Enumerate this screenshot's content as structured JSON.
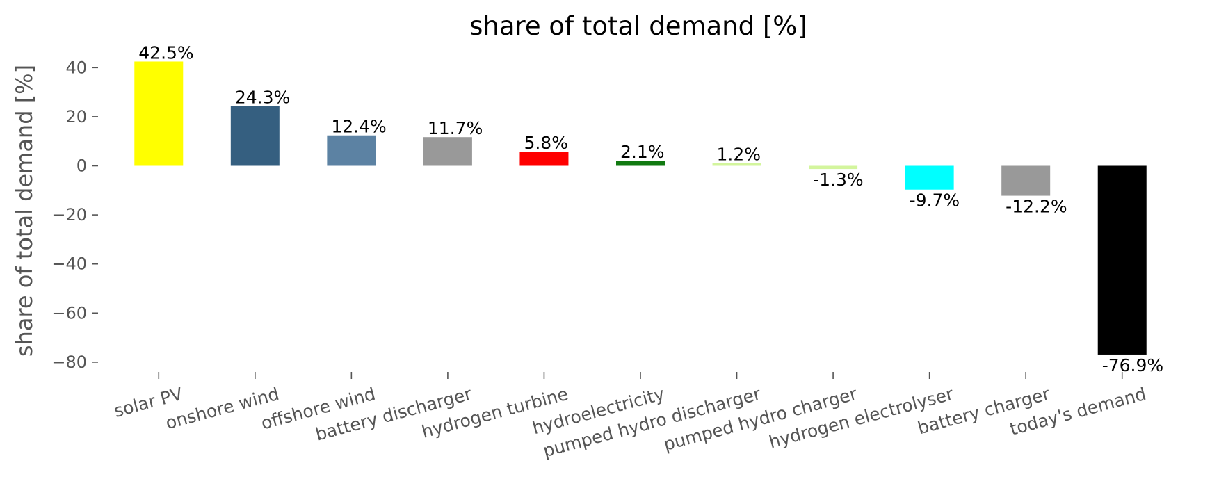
{
  "chart_data": {
    "type": "bar",
    "title": "share of total demand [%]",
    "xlabel": "",
    "ylabel": "share of total demand [%]",
    "ylim": [
      -82,
      45
    ],
    "yticks": [
      40,
      20,
      0,
      -20,
      -40,
      -60,
      -80
    ],
    "ytick_labels": [
      "40",
      "20",
      "0",
      "−20",
      "−40",
      "−60",
      "−80"
    ],
    "grid": false,
    "categories": [
      "solar PV",
      "onshore wind",
      "offshore wind",
      "battery discharger",
      "hydrogen turbine",
      "hydroelectricity",
      "pumped hydro discharger",
      "pumped hydro charger",
      "hydrogen electrolyser",
      "battery charger",
      "today's demand"
    ],
    "values": [
      42.5,
      24.3,
      12.4,
      11.7,
      5.8,
      2.1,
      1.2,
      -1.3,
      -9.7,
      -12.2,
      -76.9
    ],
    "data_labels": [
      "42.5%",
      "24.3%",
      "12.4%",
      "11.7%",
      "5.8%",
      "2.1%",
      "1.2%",
      "-1.3%",
      "-9.7%",
      "-12.2%",
      "-76.9%"
    ],
    "colors": [
      "#ffff00",
      "#355f80",
      "#5c82a3",
      "#999999",
      "#ff0000",
      "#117a11",
      "#d3f59d",
      "#d3f59d",
      "#00ffff",
      "#999999",
      "#000000"
    ]
  }
}
